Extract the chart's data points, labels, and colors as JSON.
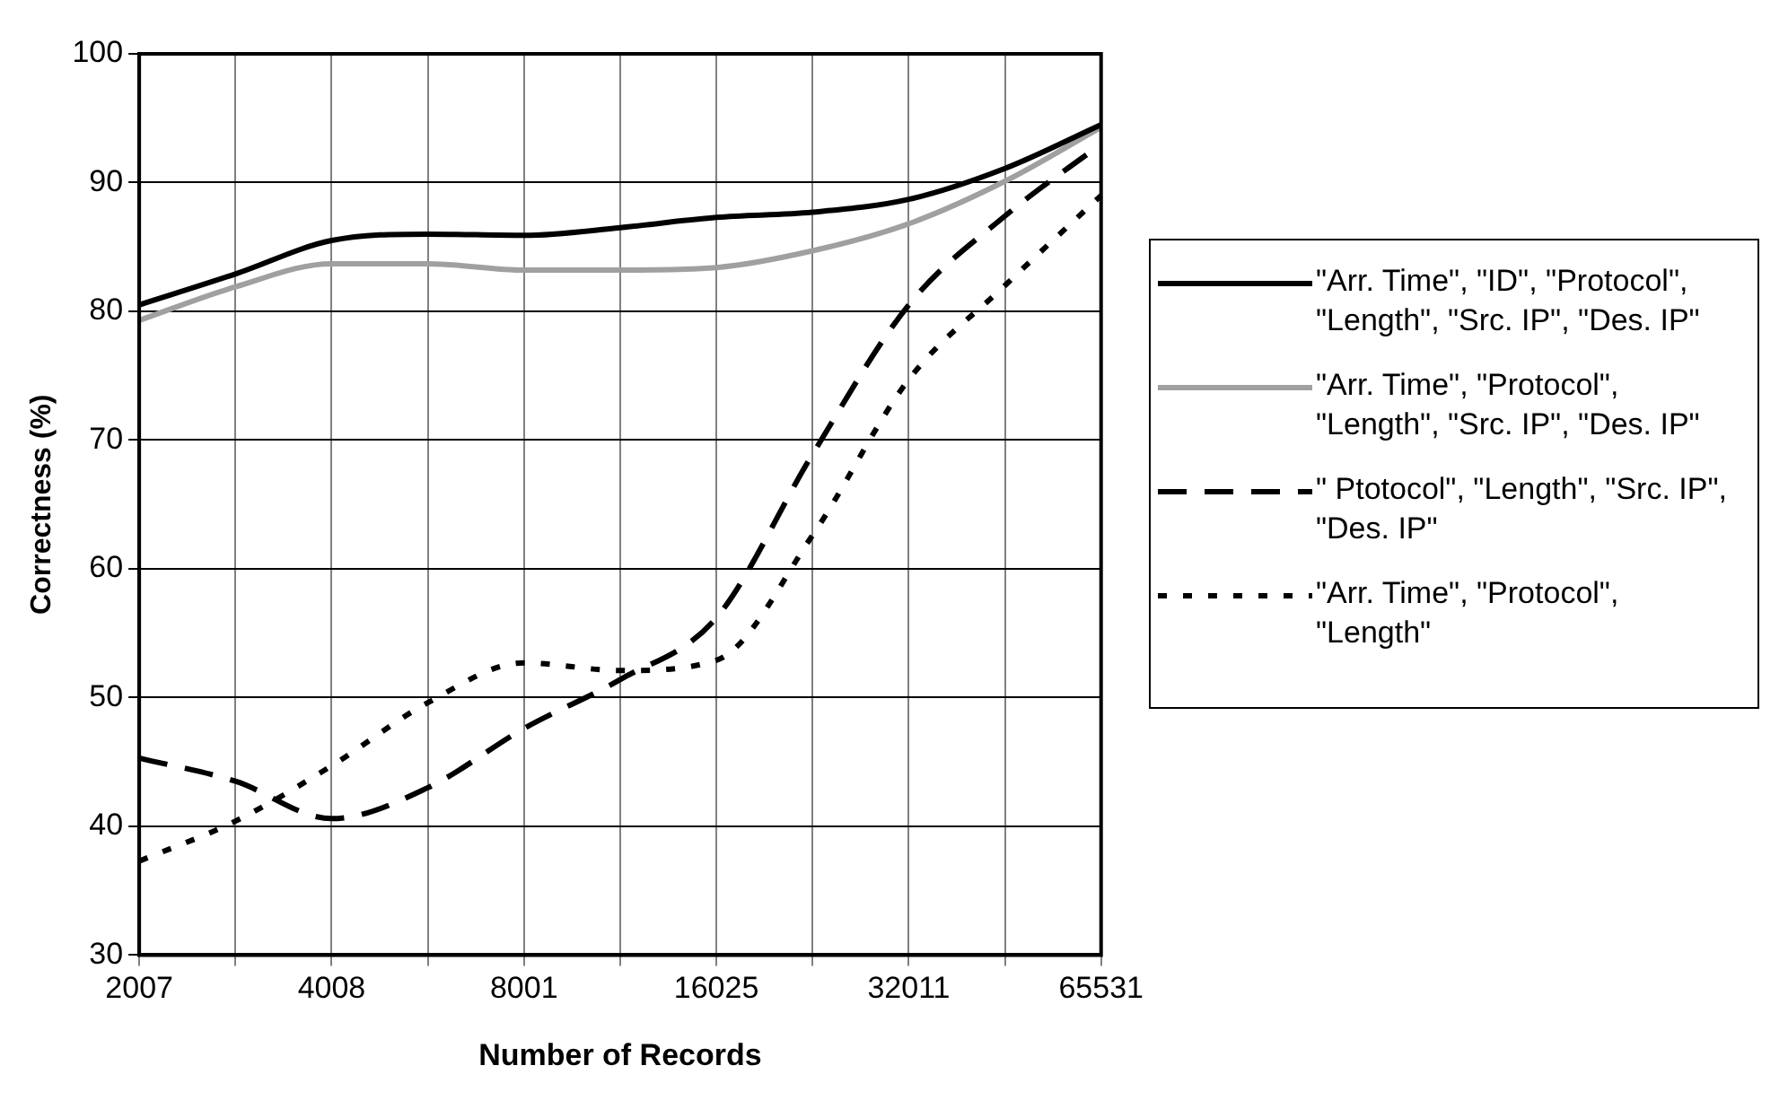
{
  "chart_data": {
    "type": "line",
    "xlabel": "Number of Records",
    "ylabel": "Correctness (%)",
    "categories": [
      "2007",
      null,
      "4008",
      null,
      "8001",
      null,
      "16025",
      null,
      "32011",
      null,
      "65531"
    ],
    "series": [
      {
        "name": "\"Arr. Time\", \"ID\", \"Protocol\", \"Length\", \"Src. IP\", \"Des. IP\"",
        "color": "#000000",
        "line_style": "solid",
        "values": [
          80.5,
          82.9,
          85.5,
          86,
          85.9,
          86.5,
          87.3,
          87.7,
          88.7,
          91.1,
          94.5
        ]
      },
      {
        "name": "\"Arr. Time\", \"Protocol\", \"Length\", \"Src. IP\", \"Des. IP\"",
        "color": "#a0a0a0",
        "line_style": "solid",
        "values": [
          79.3,
          81.9,
          83.7,
          83.7,
          83.2,
          83.2,
          83.4,
          84.7,
          86.8,
          90.1,
          94.3
        ]
      },
      {
        "name": "\" Ptotocol\", \"Length\", \"Src. IP\", \"Des. IP\"",
        "color": "#000000",
        "line_style": "dashed",
        "values": [
          45.3,
          43.5,
          40.6,
          43,
          47.6,
          51.4,
          56.2,
          68.9,
          80.5,
          87.4,
          93
        ]
      },
      {
        "name": "\"Arr. Time\", \"Protocol\", \"Length\"",
        "color": "#000000",
        "line_style": "dotted",
        "values": [
          37.3,
          40.4,
          44.7,
          49.6,
          52.7,
          52.1,
          52.9,
          62.6,
          74.7,
          82,
          89
        ]
      }
    ],
    "ylim": [
      30,
      100
    ],
    "yticks": [
      30,
      40,
      50,
      60,
      70,
      80,
      90,
      100
    ],
    "grid": true,
    "legend": "right",
    "marker": "none"
  }
}
